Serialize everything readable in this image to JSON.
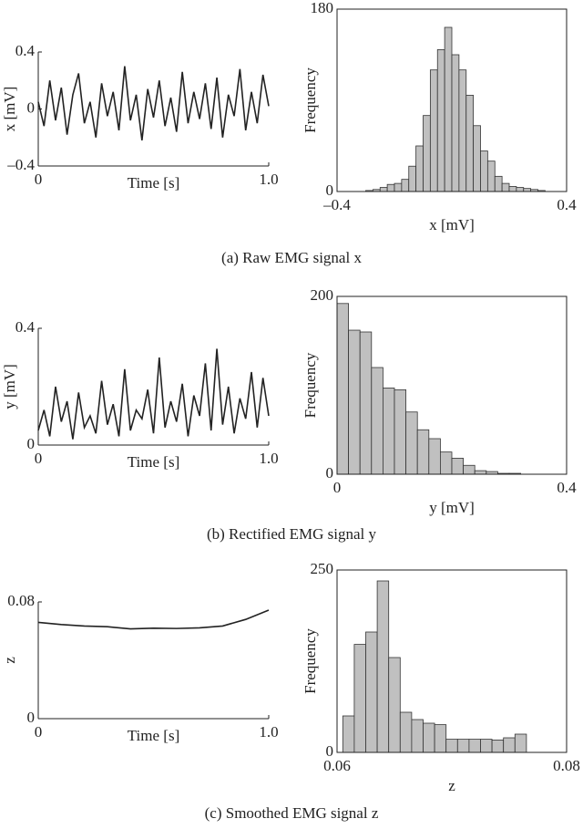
{
  "captions": [
    "(a) Raw EMG signal x",
    "(b) Rectified EMG signal y",
    "(c) Smoothed EMG signal z"
  ],
  "chart_data": [
    {
      "type": "line",
      "xlabel": "Time [s]",
      "ylabel": "x [mV]",
      "x": [
        0,
        0.025,
        0.05,
        0.075,
        0.1,
        0.125,
        0.15,
        0.175,
        0.2,
        0.225,
        0.25,
        0.275,
        0.3,
        0.325,
        0.35,
        0.375,
        0.4,
        0.425,
        0.45,
        0.475,
        0.5,
        0.525,
        0.55,
        0.575,
        0.6,
        0.625,
        0.65,
        0.675,
        0.7,
        0.725,
        0.75,
        0.775,
        0.8,
        0.825,
        0.85,
        0.875,
        0.9,
        0.925,
        0.95,
        0.975,
        1
      ],
      "values": [
        0.05,
        -0.12,
        0.2,
        -0.08,
        0.15,
        -0.18,
        0.1,
        0.25,
        -0.1,
        0.05,
        -0.2,
        0.18,
        -0.05,
        0.12,
        -0.15,
        0.3,
        -0.08,
        0.1,
        -0.22,
        0.14,
        -0.06,
        0.2,
        -0.12,
        0.08,
        -0.16,
        0.26,
        -0.1,
        0.12,
        -0.07,
        0.18,
        -0.14,
        0.22,
        -0.2,
        0.1,
        -0.05,
        0.28,
        -0.15,
        0.12,
        -0.1,
        0.24,
        0.02
      ],
      "color": "#222222",
      "xlim": [
        0,
        1
      ],
      "xticks": [
        0,
        {
          "value": 1,
          "label": "1.0"
        }
      ],
      "ylim": [
        -0.4,
        0.4
      ],
      "yticks": [
        {
          "value": -0.4,
          "label": "–0.4"
        },
        0,
        0.4
      ]
    },
    {
      "type": "histogram",
      "xlabel": "x [mV]",
      "ylabel": "Frequency",
      "bins": [
        -0.3,
        -0.275,
        -0.25,
        -0.225,
        -0.2,
        -0.175,
        -0.15,
        -0.125,
        -0.1,
        -0.075,
        -0.05,
        -0.025,
        0,
        0.025,
        0.05,
        0.075,
        0.1,
        0.125,
        0.15,
        0.175,
        0.2,
        0.225,
        0.25,
        0.275,
        0.3,
        0.325,
        0.35
      ],
      "values": [
        1,
        2,
        4,
        7,
        8,
        12,
        25,
        45,
        75,
        120,
        140,
        162,
        135,
        120,
        95,
        65,
        40,
        30,
        15,
        8,
        5,
        4,
        3,
        2,
        1,
        0
      ],
      "color": "#c0c0c0",
      "xlim": [
        -0.4,
        0.4
      ],
      "xticks": [
        {
          "value": -0.4,
          "label": "–0.4"
        },
        0.4
      ],
      "ylim": [
        0,
        180
      ],
      "yticks": [
        0,
        180
      ]
    },
    {
      "type": "line",
      "xlabel": "Time [s]",
      "ylabel": "y [mV]",
      "x": [
        0,
        0.025,
        0.05,
        0.075,
        0.1,
        0.125,
        0.15,
        0.175,
        0.2,
        0.225,
        0.25,
        0.275,
        0.3,
        0.325,
        0.35,
        0.375,
        0.4,
        0.425,
        0.45,
        0.475,
        0.5,
        0.525,
        0.55,
        0.575,
        0.6,
        0.625,
        0.65,
        0.675,
        0.7,
        0.725,
        0.75,
        0.775,
        0.8,
        0.825,
        0.85,
        0.875,
        0.9,
        0.925,
        0.95,
        0.975,
        1
      ],
      "values": [
        0.05,
        0.12,
        0.03,
        0.2,
        0.08,
        0.15,
        0.02,
        0.18,
        0.06,
        0.1,
        0.04,
        0.22,
        0.07,
        0.14,
        0.03,
        0.26,
        0.05,
        0.12,
        0.09,
        0.19,
        0.04,
        0.3,
        0.06,
        0.15,
        0.08,
        0.21,
        0.03,
        0.17,
        0.1,
        0.28,
        0.05,
        0.33,
        0.07,
        0.2,
        0.04,
        0.16,
        0.09,
        0.25,
        0.06,
        0.23,
        0.1
      ],
      "color": "#222222",
      "xlim": [
        0,
        1
      ],
      "xticks": [
        0,
        {
          "value": 1,
          "label": "1.0"
        }
      ],
      "ylim": [
        0,
        0.4
      ],
      "yticks": [
        0,
        0.4
      ]
    },
    {
      "type": "histogram",
      "xlabel": "y [mV]",
      "ylabel": "Frequency",
      "bins": [
        0,
        0.02,
        0.04,
        0.06,
        0.08,
        0.1,
        0.12,
        0.14,
        0.16,
        0.18,
        0.2,
        0.22,
        0.24,
        0.26,
        0.28,
        0.3,
        0.32
      ],
      "values": [
        192,
        162,
        160,
        120,
        97,
        95,
        70,
        50,
        40,
        25,
        18,
        10,
        4,
        3,
        1,
        1
      ],
      "color": "#c0c0c0",
      "xlim": [
        0,
        0.4
      ],
      "xticks": [
        0,
        0.4
      ],
      "ylim": [
        0,
        200
      ],
      "yticks": [
        0,
        200
      ]
    },
    {
      "type": "line",
      "xlabel": "Time [s]",
      "ylabel": "z",
      "x": [
        0,
        0.1,
        0.2,
        0.3,
        0.4,
        0.5,
        0.6,
        0.7,
        0.8,
        0.9,
        1
      ],
      "values": [
        0.066,
        0.0645,
        0.0635,
        0.063,
        0.0615,
        0.062,
        0.0618,
        0.0622,
        0.0635,
        0.068,
        0.0744
      ],
      "color": "#222222",
      "xlim": [
        0,
        1
      ],
      "xticks": [
        0,
        {
          "value": 1,
          "label": "1.0"
        }
      ],
      "ylim": [
        0,
        0.08
      ],
      "yticks": [
        0,
        0.08
      ]
    },
    {
      "type": "histogram",
      "xlabel": "z",
      "ylabel": "Frequency",
      "bins": [
        0.0605,
        0.0615,
        0.0625,
        0.0635,
        0.0645,
        0.0655,
        0.0665,
        0.0675,
        0.0685,
        0.0695,
        0.0705,
        0.0715,
        0.0725,
        0.0735,
        0.0745,
        0.0755,
        0.0765
      ],
      "values": [
        50,
        148,
        165,
        235,
        130,
        55,
        45,
        40,
        38,
        18,
        18,
        18,
        18,
        17,
        20,
        25
      ],
      "color": "#c0c0c0",
      "xlim": [
        0.06,
        0.08
      ],
      "xticks": [
        0.06,
        0.08
      ],
      "ylim": [
        0,
        250
      ],
      "yticks": [
        0,
        250
      ]
    }
  ]
}
